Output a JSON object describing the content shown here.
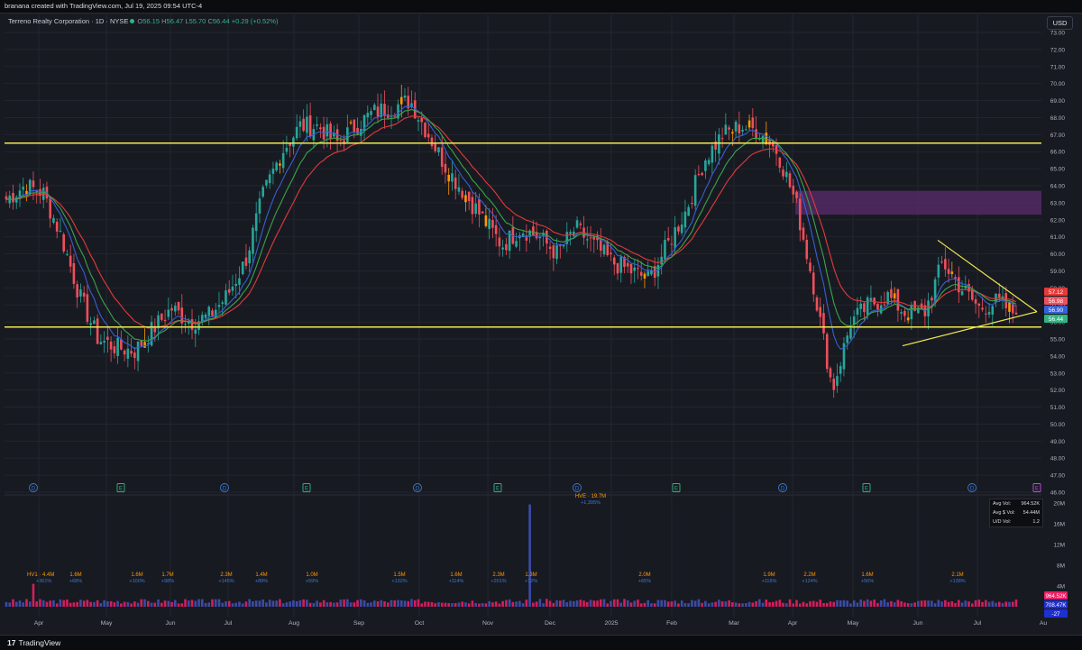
{
  "header": {
    "credit": "branana created with TradingView.com, Jul 19, 2025 09:54 UTC-4"
  },
  "legend": {
    "symbol": "Terreno Realty Corporation · 1D · NYSE",
    "o_key": "O",
    "o": "56.15",
    "h_key": "H",
    "h": "56.47",
    "l_key": "L",
    "l": "55.70",
    "c_key": "C",
    "c": "56.44",
    "change": "+0.29 (+0.52%)"
  },
  "currency_button": "USD",
  "footer": {
    "logo": "17",
    "brand": "TradingView"
  },
  "stats_box": {
    "rows": [
      {
        "label": "Avg Vol:",
        "value": "964.52K"
      },
      {
        "label": "Avg $ Vol:",
        "value": "54.44M"
      },
      {
        "label": "U/D Vol:",
        "value": "1.2"
      }
    ]
  },
  "colors": {
    "up": "#26a69a",
    "down": "#ef4f5a",
    "doji_orange": "#ff9800",
    "ema_fast": "#3560d6",
    "ema_mid": "#e33a3a",
    "ema_slow": "#3aa54b",
    "level_line": "#f2e94e",
    "supply_zone": "#5b2c6f",
    "volume_up": "#3f51b5",
    "volume_down": "#e91e63"
  },
  "chart_data": [
    {
      "type": "candlestick",
      "series_name": "Terreno Realty Corporation",
      "interval": "1D",
      "ylim": [
        46.0,
        73.0
      ],
      "y_ticks": [
        "73.00",
        "72.00",
        "71.00",
        "70.00",
        "69.00",
        "68.00",
        "67.00",
        "66.00",
        "65.00",
        "64.00",
        "63.00",
        "62.00",
        "61.00",
        "60.00",
        "59.00",
        "58.00",
        "57.00",
        "56.00",
        "55.00",
        "54.00",
        "53.00",
        "52.00",
        "51.00",
        "50.00",
        "49.00",
        "48.00",
        "47.00",
        "46.00"
      ],
      "x_ticks": [
        "Apr",
        "May",
        "Jun",
        "Jul",
        "Aug",
        "Sep",
        "Oct",
        "Nov",
        "Dec",
        "2025",
        "Feb",
        "Mar",
        "Apr",
        "May",
        "Jun",
        "Jul",
        "Au"
      ],
      "price_path": [
        [
          "Apr",
          63.2
        ],
        [
          "Apr",
          64.0
        ],
        [
          "Apr",
          63.6
        ],
        [
          "Apr",
          61.0
        ],
        [
          "Apr",
          57.5
        ],
        [
          "Apr",
          55.0
        ],
        [
          "May",
          54.5
        ],
        [
          "May",
          54.3
        ],
        [
          "May",
          55.6
        ],
        [
          "May",
          56.8
        ],
        [
          "Jun",
          56.0
        ],
        [
          "Jun",
          56.3
        ],
        [
          "Jun",
          57.5
        ],
        [
          "Jul",
          59.5
        ],
        [
          "Jul",
          63.5
        ],
        [
          "Jul",
          66.0
        ],
        [
          "Aug",
          67.5
        ],
        [
          "Aug",
          67.5
        ],
        [
          "Aug",
          66.5
        ],
        [
          "Aug",
          67.5
        ],
        [
          "Sep",
          68.3
        ],
        [
          "Sep",
          68.6
        ],
        [
          "Sep",
          69.0
        ],
        [
          "Oct",
          67.0
        ],
        [
          "Oct",
          65.0
        ],
        [
          "Oct",
          63.5
        ],
        [
          "Oct",
          62.0
        ],
        [
          "Nov",
          60.5
        ],
        [
          "Nov",
          61.5
        ],
        [
          "Nov",
          61.0
        ],
        [
          "Nov",
          60.0
        ],
        [
          "Dec",
          61.5
        ],
        [
          "Dec",
          60.5
        ],
        [
          "Dec",
          59.5
        ],
        [
          "2025",
          59.0
        ],
        [
          "2025",
          58.5
        ],
        [
          "2025",
          60.5
        ],
        [
          "Feb",
          62.5
        ],
        [
          "Feb",
          65.5
        ],
        [
          "Feb",
          67.0
        ],
        [
          "Mar",
          67.5
        ],
        [
          "Mar",
          67.2
        ],
        [
          "Mar",
          66.0
        ],
        [
          "Apr",
          63.0
        ],
        [
          "Apr",
          58.0
        ],
        [
          "Apr",
          52.0
        ],
        [
          "Apr",
          56.0
        ],
        [
          "May",
          57.0
        ],
        [
          "May",
          57.5
        ],
        [
          "May",
          56.5
        ],
        [
          "Jun",
          56.5
        ],
        [
          "Jun",
          59.5
        ],
        [
          "Jun",
          58.0
        ],
        [
          "Jul",
          56.8
        ],
        [
          "Jul",
          57.2
        ],
        [
          "Jul",
          56.44
        ]
      ],
      "price_labels": [
        {
          "value": "57.12",
          "color": "#e33a3a"
        },
        {
          "value": "56.98",
          "color": "#ef4f5a"
        },
        {
          "value": "56.90",
          "color": "#3560d6"
        },
        {
          "value": "56.44",
          "color": "#2fb584"
        }
      ],
      "horizontal_levels": [
        66.5,
        55.7
      ],
      "supply_zone": {
        "top": 63.7,
        "bottom": 62.3
      },
      "triangle": {
        "apex": [
          "Jul",
          56.6
        ],
        "upper_start": [
          "Jun",
          60.8
        ],
        "lower_start": [
          "May",
          54.6
        ]
      },
      "event_markers": [
        "D",
        "E",
        "D",
        "E",
        "D",
        "E",
        "D",
        "E",
        "D",
        "E",
        "D",
        "E"
      ]
    },
    {
      "type": "bar",
      "series_name": "Volume",
      "ylim": [
        0,
        21000000
      ],
      "y_ticks": [
        "20M",
        "16M",
        "12M",
        "8M",
        "4M"
      ],
      "current_volume": "964.52K",
      "current_delta": "708.47K",
      "current_extra": "-27",
      "annotations": [
        {
          "label": "HV1 · 4.4M",
          "sub": "+361%"
        },
        {
          "label": "1.6M",
          "sub": "+68%"
        },
        {
          "label": "1.6M",
          "sub": "+100%"
        },
        {
          "label": "1.7M",
          "sub": "+98%"
        },
        {
          "label": "2.3M",
          "sub": "+145%"
        },
        {
          "label": "1.4M",
          "sub": "+89%"
        },
        {
          "label": "1.0M",
          "sub": "+59%"
        },
        {
          "label": "1.5M",
          "sub": "+132%"
        },
        {
          "label": "1.6M",
          "sub": "+114%"
        },
        {
          "label": "2.3M",
          "sub": "+201%"
        },
        {
          "label": "1.3M",
          "sub": "+72%"
        },
        {
          "label": "HVE · 19.7M",
          "sub": "+1,395%"
        },
        {
          "label": "2.0M",
          "sub": "+65%"
        },
        {
          "label": "1.9M",
          "sub": "+116%"
        },
        {
          "label": "2.2M",
          "sub": "+124%"
        },
        {
          "label": "1.6M",
          "sub": "+56%"
        },
        {
          "label": "2.1M",
          "sub": "+138%"
        }
      ]
    }
  ]
}
